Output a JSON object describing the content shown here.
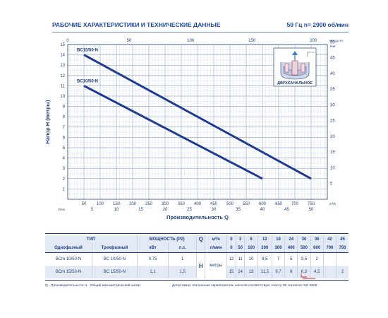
{
  "header": {
    "title": "РАБОЧИЕ ХАРАКТЕРИСТИКИ И ТЕХНИЧЕСКИЕ ДАННЫЕ",
    "freq": "50 Гц   n= 2900 об/мин"
  },
  "inset": {
    "label": "ДВУХКАНАЛЬНОЕ"
  },
  "chart_data": {
    "type": "line",
    "xlabel": "Производительность Q",
    "ylabel": "Напор H (метры)",
    "x_unit": "m³/h",
    "xlim": [
      0,
      800
    ],
    "ylim": [
      0,
      15
    ],
    "x_ticks": [
      50,
      100,
      150,
      200,
      250,
      300,
      350,
      400,
      450,
      500,
      550,
      600,
      650,
      700,
      750
    ],
    "y_ticks": [
      1,
      2,
      3,
      4,
      5,
      6,
      7,
      8,
      9,
      10,
      11,
      12,
      13,
      14,
      15
    ],
    "top_axis": {
      "unit": "US g.p.m.",
      "ticks": [
        0,
        50,
        100,
        150,
        200
      ],
      "max": 211.34
    },
    "right_axis_feet": {
      "unit": "feet",
      "ticks": [
        5,
        10,
        15,
        20,
        25,
        30,
        35,
        40,
        45,
        50
      ],
      "max": 49.2
    },
    "bottom_axis_gpm": {
      "unit": "l/min",
      "ticks": [
        5,
        10,
        15,
        20,
        25,
        30,
        35,
        40,
        45,
        50
      ],
      "max": 53.33
    },
    "bottom_unit_left": "l/min",
    "bottom_unit_right": "m³/h",
    "series": [
      {
        "name": "BC15/50-N",
        "x": [
          50,
          750
        ],
        "y": [
          14.0,
          2.0
        ]
      },
      {
        "name": "BC10/50-N",
        "x": [
          50,
          600
        ],
        "y": [
          11.0,
          2.0
        ]
      }
    ]
  },
  "table": {
    "head": {
      "type": "ТИП",
      "single_phase": "Однофазный",
      "three_phase": "Трехфазный",
      "power": "МОЩНОСТЬ (P2)",
      "kw": "кВт",
      "hp": "л.с.",
      "q_label": "Q",
      "q_unit_m3": "м³/ч",
      "q_unit_l": "л/мин",
      "h_label": "H",
      "h_unit": "метры",
      "q_m3": [
        "0",
        "3",
        "6",
        "12",
        "18",
        "24",
        "30",
        "36",
        "42",
        "45"
      ],
      "q_l": [
        "0",
        "50",
        "100",
        "200",
        "300",
        "400",
        "500",
        "600",
        "700",
        "750"
      ]
    },
    "rows": [
      {
        "single": "BCm 10/50-N",
        "three": "BC 10/50-N",
        "kw": "0,75",
        "hp": "1",
        "h": [
          "12",
          "11",
          "10",
          "8,5",
          "7",
          "5",
          "3,5",
          "2",
          "",
          ""
        ]
      },
      {
        "single": "BCm 15/50-N",
        "three": "BC 15/50-N",
        "kw": "1,1",
        "hp": "1,5",
        "h": [
          "15",
          "14",
          "13",
          "11,5",
          "9,7",
          "8",
          "6,3",
          "4,5",
          "",
          "2"
        ]
      }
    ]
  },
  "footer": {
    "left": "Q - Производительность   H - Общий манометрический напор",
    "right": "Допустимое отклонение характеристик насосов соответствует классу 3B согласно ISO 9906."
  }
}
